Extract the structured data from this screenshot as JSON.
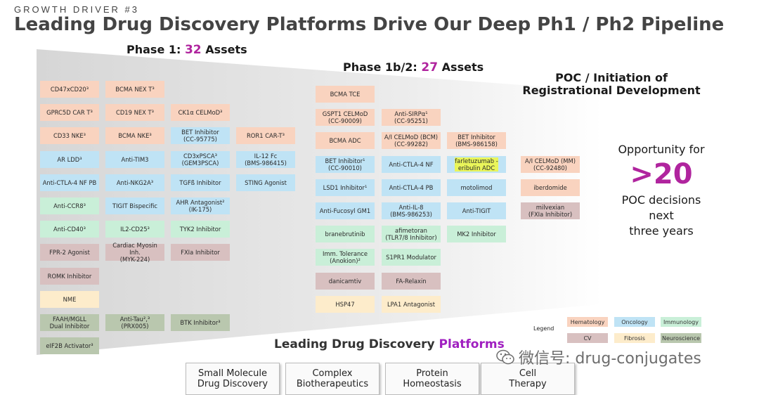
{
  "header": {
    "eyebrow": "GROWTH DRIVER #3",
    "title": "Leading Drug Discovery Platforms Drive Our Deep Ph1 / Ph2 Pipeline"
  },
  "phase1": {
    "label": "Phase 1:",
    "count": "32",
    "suffix": "Assets"
  },
  "phase2": {
    "label": "Phase 1b/2:",
    "count": "27",
    "suffix": "Assets"
  },
  "poc": {
    "line1": "POC / Initiation of",
    "line2": "Registrational Development"
  },
  "opportunity": {
    "line1": "Opportunity for",
    "big": ">20",
    "line2": "POC decisions",
    "line3": "next",
    "line4": "three years"
  },
  "colors": {
    "Hematology": "#f9d3bf",
    "Oncology": "#bfe3f5",
    "Immunology": "#c9efd8",
    "CV": "#d8c0c0",
    "Fibrosis": "#fdeccb",
    "Neuroscience": "#b9c7ae",
    "accent": "#b0249e"
  },
  "assets": {
    "p1c1": [
      {
        "text": "CD47xCD20³",
        "cat": "heme"
      },
      {
        "text": "GPRC5D CAR T³",
        "cat": "heme"
      },
      {
        "text": "CD33 NKE³",
        "cat": "heme"
      },
      {
        "text": "AR LDD³",
        "cat": "onc"
      },
      {
        "text": "Anti-CTLA-4 NF PB",
        "cat": "onc"
      },
      {
        "text": "Anti-CCR8³",
        "cat": "imm"
      },
      {
        "text": "Anti-CD40³",
        "cat": "imm"
      },
      {
        "text": "FPR-2 Agonist",
        "cat": "cv"
      },
      {
        "text": "ROMK Inhibitor",
        "cat": "cv"
      },
      {
        "text": "NME",
        "cat": "fib"
      },
      {
        "text": "FAAH/MGLL\nDual Inhibitor",
        "cat": "neuro"
      },
      {
        "text": "eIF2B Activator³",
        "cat": "neuro"
      }
    ],
    "p1c2": [
      {
        "text": "BCMA NEX T³",
        "cat": "heme"
      },
      {
        "text": "CD19 NEX T³",
        "cat": "heme"
      },
      {
        "text": "BCMA NKE³",
        "cat": "heme"
      },
      {
        "text": "Anti-TIM3",
        "cat": "onc"
      },
      {
        "text": "Anti-NKG2A³",
        "cat": "onc"
      },
      {
        "text": "TIGIT Bispecific",
        "cat": "onc"
      },
      {
        "text": "IL2-CD25³",
        "cat": "imm"
      },
      {
        "text": "Cardiac Myosin Inh.\n(MYK-224)",
        "cat": "cv"
      },
      {
        "text": "Anti-Tau²,³\n(PRX005)",
        "cat": "neuro"
      }
    ],
    "p1c3": [
      {
        "text": "CK1α CELMoD³",
        "cat": "heme"
      },
      {
        "text": "BET Inhibitor\n(CC-95775)",
        "cat": "onc"
      },
      {
        "text": "CD3xPSCA³\n(GEM3PSCA)",
        "cat": "onc"
      },
      {
        "text": "TGFß Inhibitor",
        "cat": "onc"
      },
      {
        "text": "AHR Antagonist²\n(IK-175)",
        "cat": "onc"
      },
      {
        "text": "TYK2 Inhibitor",
        "cat": "imm"
      },
      {
        "text": "FXIa Inhibitor",
        "cat": "cv"
      },
      {
        "text": "BTK Inhibitor³",
        "cat": "neuro"
      }
    ],
    "p1c4": [
      {
        "text": "ROR1 CAR-T³",
        "cat": "heme"
      },
      {
        "text": "IL-12 Fc\n(BMS-986415)",
        "cat": "onc"
      },
      {
        "text": "STING Agonist",
        "cat": "onc"
      }
    ],
    "p2c1": [
      {
        "text": "BCMA TCE",
        "cat": "heme"
      },
      {
        "text": "GSPT1 CELMoD\n(CC-90009)",
        "cat": "heme"
      },
      {
        "text": "BCMA ADC",
        "cat": "heme"
      },
      {
        "text": "BET Inhibitor¹\n(CC-90010)",
        "cat": "onc"
      },
      {
        "text": "LSD1 Inhibitor¹",
        "cat": "onc"
      },
      {
        "text": "Anti-Fucosyl GM1",
        "cat": "onc"
      },
      {
        "text": "branebrutinib",
        "cat": "imm"
      },
      {
        "text": "Imm. Tolerance\n(Anokion)²",
        "cat": "imm"
      },
      {
        "text": "danicamtiv",
        "cat": "cv"
      },
      {
        "text": "HSP47",
        "cat": "fib"
      }
    ],
    "p2c2": [
      {
        "text": "Anti-SIRPα¹\n(CC-95251)",
        "cat": "heme"
      },
      {
        "text": "A/I CELMoD (BCM)\n(CC-99282)",
        "cat": "heme"
      },
      {
        "text": "Anti-CTLA-4 NF",
        "cat": "onc"
      },
      {
        "text": "Anti-CTLA-4 PB",
        "cat": "onc"
      },
      {
        "text": "Anti-IL-8\n(BMS-986253)",
        "cat": "onc"
      },
      {
        "text": "afimetoran\n(TLR7/8 Inhibitor)",
        "cat": "imm"
      },
      {
        "text": "S1PR1 Modulator",
        "cat": "imm"
      },
      {
        "text": "FA-Relaxin",
        "cat": "cv"
      },
      {
        "text": "LPA1 Antagonist",
        "cat": "fib"
      }
    ],
    "p2c3": [
      {
        "text": "BET Inhibitor\n(BMS-986158)",
        "cat": "heme"
      },
      {
        "text": "farletuzumab -\neribulin ADC",
        "cat": "onc",
        "highlight": true
      },
      {
        "text": "motolimod",
        "cat": "onc"
      },
      {
        "text": "Anti-TIGIT",
        "cat": "onc"
      },
      {
        "text": "MK2 Inhibitor",
        "cat": "imm"
      }
    ],
    "poc": [
      {
        "text": "A/I CELMoD (MM)\n(CC-92480)",
        "cat": "heme"
      },
      {
        "text": "iberdomide",
        "cat": "heme"
      },
      {
        "text": "milvexian\n(FXIa Inhibitor)",
        "cat": "cv"
      }
    ]
  },
  "legend": {
    "label": "Legend",
    "items": [
      {
        "text": "Hematology",
        "cat": "heme"
      },
      {
        "text": "Oncology",
        "cat": "onc"
      },
      {
        "text": "Immunology",
        "cat": "imm"
      },
      {
        "text": "CV",
        "cat": "cv"
      },
      {
        "text": "Fibrosis",
        "cat": "fib"
      },
      {
        "text": "Neuroscience",
        "cat": "neuro"
      }
    ]
  },
  "platforms": {
    "title_main": "Leading Drug Discovery",
    "title_accent": "Platform",
    "title_rest": "s",
    "items": [
      "Small Molecule\nDrug Discovery",
      "Complex\nBiotherapeutics",
      "Protein\nHomeostasis",
      "Cell\nTherapy"
    ]
  },
  "watermark": {
    "text": "微信号: drug-conjugates"
  }
}
